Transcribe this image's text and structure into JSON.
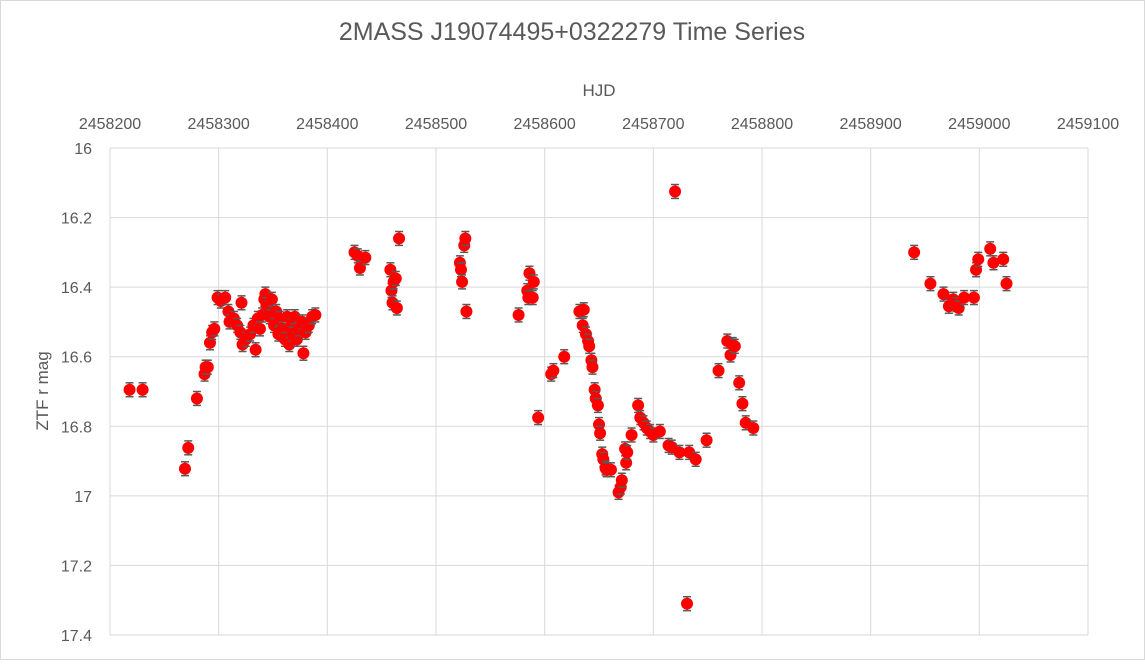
{
  "chart_data": {
    "type": "scatter",
    "title": "2MASS J19074495+0322279 Time Series",
    "x_label": "HJD",
    "y_label": "ZTF r mag",
    "xlim": [
      2458200,
      2459100
    ],
    "xticks": [
      2458200,
      2458300,
      2458400,
      2458500,
      2458600,
      2458700,
      2458800,
      2458900,
      2459000,
      2459100
    ],
    "ylim": [
      16,
      17.4
    ],
    "yticks": [
      16,
      16.2,
      16.4,
      16.6,
      16.8,
      17,
      17.2,
      17.4
    ],
    "y_inverted": true,
    "grid": true,
    "series": [
      {
        "color": "#ff0000",
        "error_color": "#595959",
        "error": 0.02,
        "x": [
          2458218,
          2458230,
          2458269,
          2458272,
          2458280,
          2458287,
          2458288,
          2458290,
          2458292,
          2458294,
          2458296,
          2458299,
          2458302,
          2458306,
          2458309,
          2458310,
          2458314,
          2458317,
          2458320,
          2458321,
          2458322,
          2458325,
          2458329,
          2458332,
          2458334,
          2458336,
          2458338,
          2458340,
          2458342,
          2458343,
          2458344,
          2458346,
          2458347,
          2458349,
          2458351,
          2458353,
          2458355,
          2458356,
          2458359,
          2458361,
          2458363,
          2458365,
          2458367,
          2458368,
          2458370,
          2458372,
          2458374,
          2458377,
          2458378,
          2458380,
          2458383,
          2458386,
          2458389,
          2458425,
          2458428,
          2458430,
          2458435,
          2458458,
          2458459,
          2458460,
          2458461,
          2458463,
          2458464,
          2458466,
          2458522,
          2458523,
          2458524,
          2458526,
          2458527,
          2458528,
          2458576,
          2458584,
          2458585,
          2458586,
          2458589,
          2458590,
          2458594,
          2458606,
          2458608,
          2458618,
          2458632,
          2458635,
          2458636,
          2458638,
          2458640,
          2458641,
          2458643,
          2458644,
          2458646,
          2458647,
          2458649,
          2458650,
          2458651,
          2458653,
          2458654,
          2458656,
          2458657,
          2458661,
          2458668,
          2458670,
          2458671,
          2458674,
          2458675,
          2458676,
          2458680,
          2458686,
          2458688,
          2458691,
          2458694,
          2458697,
          2458700,
          2458706,
          2458714,
          2458717,
          2458720,
          2458724,
          2458731,
          2458733,
          2458739,
          2458749,
          2458760,
          2458768,
          2458771,
          2458773,
          2458775,
          2458779,
          2458782,
          2458785,
          2458792,
          2458940,
          2458955,
          2458967,
          2458972,
          2458976,
          2458979,
          2458981,
          2458986,
          2458995,
          2458997,
          2458999,
          2459010,
          2459013,
          2459022,
          2459025
        ],
        "values": [
          16.695,
          16.695,
          16.922,
          16.862,
          16.72,
          16.65,
          16.63,
          16.63,
          16.56,
          16.53,
          16.52,
          16.43,
          16.44,
          16.43,
          16.47,
          16.5,
          16.49,
          16.51,
          16.53,
          16.445,
          16.565,
          16.55,
          16.535,
          16.51,
          16.58,
          16.49,
          16.52,
          16.48,
          16.435,
          16.42,
          16.45,
          16.46,
          16.485,
          16.435,
          16.51,
          16.47,
          16.535,
          16.49,
          16.52,
          16.55,
          16.485,
          16.565,
          16.51,
          16.535,
          16.485,
          16.55,
          16.52,
          16.5,
          16.59,
          16.53,
          16.51,
          16.485,
          16.48,
          16.3,
          16.31,
          16.345,
          16.315,
          16.35,
          16.41,
          16.445,
          16.385,
          16.375,
          16.46,
          16.26,
          16.33,
          16.35,
          16.385,
          16.28,
          16.26,
          16.47,
          16.48,
          16.41,
          16.43,
          16.36,
          16.43,
          16.385,
          16.775,
          16.65,
          16.64,
          16.6,
          16.47,
          16.51,
          16.465,
          16.535,
          16.555,
          16.57,
          16.61,
          16.63,
          16.695,
          16.72,
          16.74,
          16.795,
          16.82,
          16.88,
          16.895,
          16.92,
          16.925,
          16.925,
          16.99,
          16.975,
          16.955,
          16.865,
          16.905,
          16.875,
          16.825,
          16.74,
          16.775,
          16.79,
          16.805,
          16.815,
          16.825,
          16.815,
          16.855,
          16.86,
          16.125,
          16.875,
          17.31,
          16.875,
          16.895,
          16.84,
          16.64,
          16.555,
          16.595,
          16.565,
          16.57,
          16.675,
          16.735,
          16.79,
          16.805,
          16.3,
          16.39,
          16.42,
          16.455,
          16.435,
          16.45,
          16.46,
          16.43,
          16.43,
          16.35,
          16.32,
          16.29,
          16.33,
          16.32,
          16.39
        ]
      }
    ]
  }
}
